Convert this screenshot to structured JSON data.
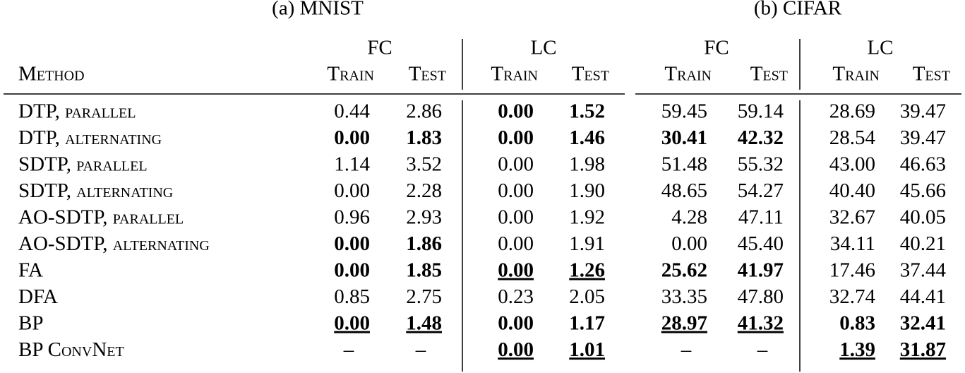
{
  "method_header": "Method",
  "methods": [
    "DTP, parallel",
    "DTP, alternating",
    "SDTP, parallel",
    "SDTP, alternating",
    "AO-SDTP, parallel",
    "AO-SDTP, alternating",
    "FA",
    "DFA",
    "BP",
    "BP ConvNet"
  ],
  "tables": [
    {
      "caption": "(a) MNIST",
      "groups": [
        "FC",
        "LC"
      ],
      "subheaders": [
        "Train",
        "Test",
        "Train",
        "Test"
      ],
      "rows": [
        [
          "0.44",
          "2.86",
          "0.00",
          "1.52"
        ],
        [
          "0.00",
          "1.83",
          "0.00",
          "1.46"
        ],
        [
          "1.14",
          "3.52",
          "0.00",
          "1.98"
        ],
        [
          "0.00",
          "2.28",
          "0.00",
          "1.90"
        ],
        [
          "0.96",
          "2.93",
          "0.00",
          "1.92"
        ],
        [
          "0.00",
          "1.86",
          "0.00",
          "1.91"
        ],
        [
          "0.00",
          "1.85",
          "0.00",
          "1.26"
        ],
        [
          "0.85",
          "2.75",
          "0.23",
          "2.05"
        ],
        [
          "0.00",
          "1.48",
          "0.00",
          "1.17"
        ],
        [
          "–",
          "–",
          "0.00",
          "1.01"
        ]
      ]
    },
    {
      "caption": "(b) CIFAR",
      "groups": [
        "FC",
        "LC"
      ],
      "subheaders": [
        "Train",
        "Test",
        "Train",
        "Test"
      ],
      "rows": [
        [
          "59.45",
          "59.14",
          "28.69",
          "39.47"
        ],
        [
          "30.41",
          "42.32",
          "28.54",
          "39.47"
        ],
        [
          "51.48",
          "55.32",
          "43.00",
          "46.63"
        ],
        [
          "48.65",
          "54.27",
          "40.40",
          "45.66"
        ],
        [
          "4.28",
          "47.11",
          "32.67",
          "40.05"
        ],
        [
          "0.00",
          "45.40",
          "34.11",
          "40.21"
        ],
        [
          "25.62",
          "41.97",
          "17.46",
          "37.44"
        ],
        [
          "33.35",
          "47.80",
          "32.74",
          "44.41"
        ],
        [
          "28.97",
          "41.32",
          "0.83",
          "32.41"
        ],
        [
          "–",
          "–",
          "1.39",
          "31.87"
        ]
      ]
    }
  ]
}
